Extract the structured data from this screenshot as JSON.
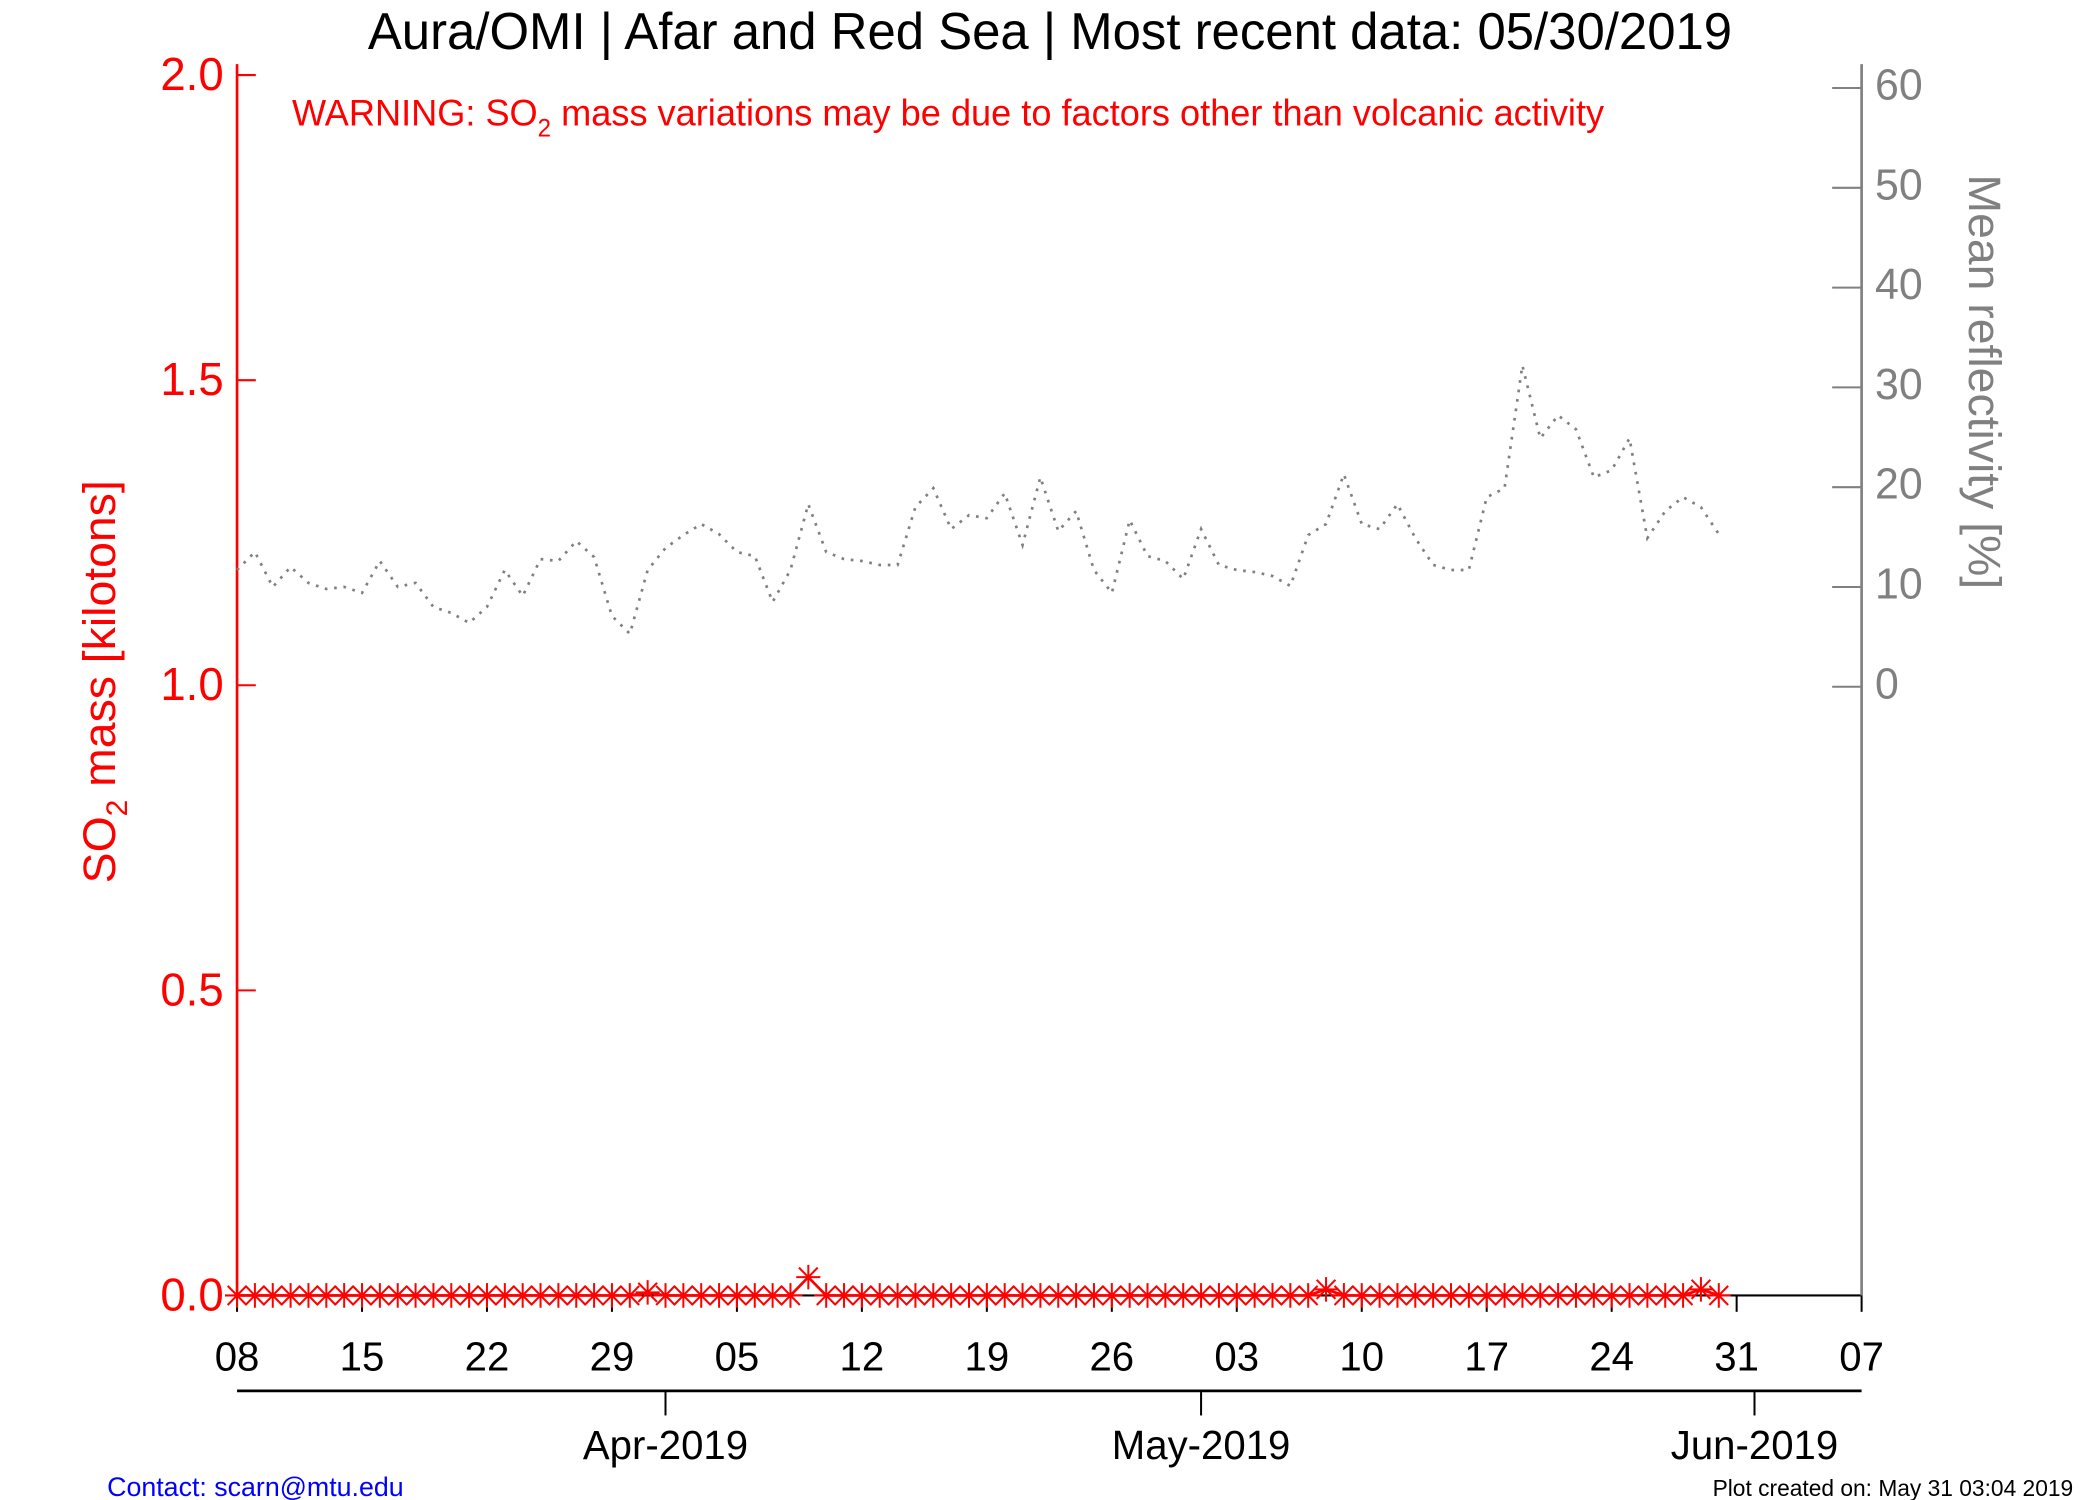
{
  "chart_data": {
    "type": "line",
    "title": "Aura/OMI | Afar and Red Sea | Most recent data: 05/30/2019",
    "warning": {
      "text": "WARNING: SO",
      "subscript": "2",
      "rest": " mass variations may be due to factors other than volcanic activity"
    },
    "ylabel": {
      "text": "SO",
      "subscript": "2",
      "rest": " mass [kilotons]"
    },
    "y2label": "Mean reflectivity [%]",
    "contact": "Contact: scarn@mtu.edu",
    "created": "Plot created on: May 31 03:04 2019",
    "x": [
      "2019-03-08",
      "2019-03-09",
      "2019-03-10",
      "2019-03-11",
      "2019-03-12",
      "2019-03-13",
      "2019-03-14",
      "2019-03-15",
      "2019-03-16",
      "2019-03-17",
      "2019-03-18",
      "2019-03-19",
      "2019-03-20",
      "2019-03-21",
      "2019-03-22",
      "2019-03-23",
      "2019-03-24",
      "2019-03-25",
      "2019-03-26",
      "2019-03-27",
      "2019-03-28",
      "2019-03-29",
      "2019-03-30",
      "2019-03-31",
      "2019-04-01",
      "2019-04-02",
      "2019-04-03",
      "2019-04-04",
      "2019-04-05",
      "2019-04-06",
      "2019-04-07",
      "2019-04-08",
      "2019-04-09",
      "2019-04-10",
      "2019-04-11",
      "2019-04-12",
      "2019-04-13",
      "2019-04-14",
      "2019-04-15",
      "2019-04-16",
      "2019-04-17",
      "2019-04-18",
      "2019-04-19",
      "2019-04-20",
      "2019-04-21",
      "2019-04-22",
      "2019-04-23",
      "2019-04-24",
      "2019-04-25",
      "2019-04-26",
      "2019-04-27",
      "2019-04-28",
      "2019-04-29",
      "2019-04-30",
      "2019-05-01",
      "2019-05-02",
      "2019-05-03",
      "2019-05-04",
      "2019-05-05",
      "2019-05-06",
      "2019-05-07",
      "2019-05-08",
      "2019-05-09",
      "2019-05-10",
      "2019-05-11",
      "2019-05-12",
      "2019-05-13",
      "2019-05-14",
      "2019-05-15",
      "2019-05-16",
      "2019-05-17",
      "2019-05-18",
      "2019-05-19",
      "2019-05-20",
      "2019-05-21",
      "2019-05-22",
      "2019-05-23",
      "2019-05-24",
      "2019-05-25",
      "2019-05-26",
      "2019-05-27",
      "2019-05-28",
      "2019-05-29",
      "2019-05-30"
    ],
    "series": [
      {
        "name": "SO2 mass",
        "color": "#ff0000",
        "axis": "y",
        "values": [
          0,
          0,
          0,
          0,
          0,
          0,
          0,
          0,
          0,
          0,
          0,
          0,
          0,
          0,
          0,
          0,
          0,
          0,
          0,
          0,
          0,
          0,
          0,
          0.005,
          0,
          0,
          0,
          0,
          0,
          0,
          0,
          0,
          0.03,
          0,
          0,
          0,
          0,
          0,
          0,
          0,
          0,
          0,
          0,
          0,
          0,
          0,
          0,
          0,
          0,
          0,
          0,
          0,
          0,
          0,
          0,
          0,
          0,
          0,
          0,
          0,
          0,
          0.01,
          0,
          0,
          0,
          0,
          0,
          0,
          0,
          0,
          0,
          0,
          0,
          0,
          0,
          0,
          0,
          0,
          0,
          0,
          0,
          0,
          0.01,
          0
        ]
      },
      {
        "name": "Mean reflectivity",
        "color": "#808080",
        "axis": "y2",
        "values": [
          11.7,
          13.5,
          10,
          12,
          10.4,
          9.8,
          10,
          9.4,
          12.6,
          10,
          10.4,
          8,
          7.4,
          6.4,
          8,
          11.7,
          9.1,
          12.8,
          12.6,
          14.6,
          13,
          7.1,
          5.3,
          11.7,
          13.9,
          15.2,
          16.3,
          15.3,
          13.5,
          13.1,
          8.5,
          11.7,
          18.3,
          13.5,
          12.8,
          12.6,
          12.2,
          12.2,
          18,
          19.9,
          15.8,
          17.2,
          16.9,
          19.4,
          14.2,
          21,
          15.6,
          17.6,
          11.7,
          9.4,
          16.7,
          13.1,
          12.6,
          10.8,
          15.8,
          12.2,
          11.7,
          11.5,
          11.1,
          10.1,
          15.2,
          16.3,
          21.3,
          16.3,
          15.8,
          18.3,
          14.9,
          12.2,
          11.7,
          11.7,
          19,
          19.9,
          32.2,
          24.9,
          27.2,
          25.8,
          21,
          21.7,
          24.9,
          14.9,
          17.6,
          19,
          18,
          15.3
        ]
      }
    ],
    "xlim": [
      "2019-03-08",
      "2019-06-07"
    ],
    "xticks": [
      {
        "value": "2019-03-08",
        "label": "08"
      },
      {
        "value": "2019-03-15",
        "label": "15"
      },
      {
        "value": "2019-03-22",
        "label": "22"
      },
      {
        "value": "2019-03-29",
        "label": "29"
      },
      {
        "value": "2019-04-05",
        "label": "05"
      },
      {
        "value": "2019-04-12",
        "label": "12"
      },
      {
        "value": "2019-04-19",
        "label": "19"
      },
      {
        "value": "2019-04-26",
        "label": "26"
      },
      {
        "value": "2019-05-03",
        "label": "03"
      },
      {
        "value": "2019-05-10",
        "label": "10"
      },
      {
        "value": "2019-05-17",
        "label": "17"
      },
      {
        "value": "2019-05-24",
        "label": "24"
      },
      {
        "value": "2019-05-31",
        "label": "31"
      },
      {
        "value": "2019-06-07",
        "label": "07"
      }
    ],
    "month_ticks": [
      {
        "value": "2019-04-01",
        "label": "Apr-2019"
      },
      {
        "value": "2019-05-01",
        "label": "May-2019"
      },
      {
        "value": "2019-06-01",
        "label": "Jun-2019"
      }
    ],
    "ylim": [
      0,
      2.018
    ],
    "yticks": [
      {
        "value": 0,
        "label": "0.0"
      },
      {
        "value": 0.5,
        "label": "0.5"
      },
      {
        "value": 1,
        "label": "1.0"
      },
      {
        "value": 1.5,
        "label": "1.5"
      },
      {
        "value": 2,
        "label": "2.0"
      }
    ],
    "y2lim": [
      -61,
      62.4
    ],
    "y2ticks": [
      0,
      10,
      20,
      30,
      40,
      50,
      60
    ]
  }
}
